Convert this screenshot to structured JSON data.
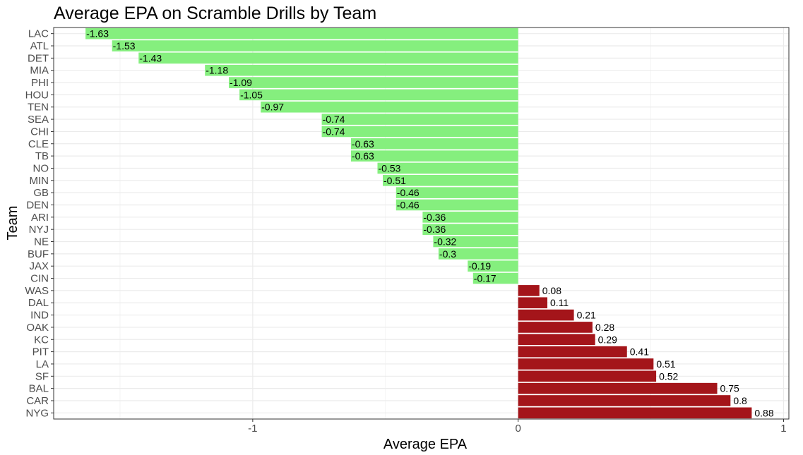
{
  "chart_data": {
    "type": "bar",
    "orientation": "horizontal",
    "title": "Average EPA on Scramble Drills by Team",
    "xlabel": "Average EPA",
    "ylabel": "Team",
    "xlim": [
      -1.75,
      1.02
    ],
    "xticks": [
      -1,
      0,
      1
    ],
    "xtick_labels": [
      "-1",
      "0",
      "1"
    ],
    "grid": true,
    "legend": "none",
    "colors": {
      "negative": "#85ef7e",
      "positive": "#a4151a"
    },
    "categories": [
      "LAC",
      "ATL",
      "DET",
      "MIA",
      "PHI",
      "HOU",
      "TEN",
      "SEA",
      "CHI",
      "CLE",
      "TB",
      "NO",
      "MIN",
      "GB",
      "DEN",
      "ARI",
      "NYJ",
      "NE",
      "BUF",
      "JAX",
      "CIN",
      "WAS",
      "DAL",
      "IND",
      "OAK",
      "KC",
      "PIT",
      "LA",
      "SF",
      "BAL",
      "CAR",
      "NYG"
    ],
    "values": [
      -1.63,
      -1.53,
      -1.43,
      -1.18,
      -1.09,
      -1.05,
      -0.97,
      -0.74,
      -0.74,
      -0.63,
      -0.63,
      -0.53,
      -0.51,
      -0.46,
      -0.46,
      -0.36,
      -0.36,
      -0.32,
      -0.3,
      -0.19,
      -0.17,
      0.08,
      0.11,
      0.21,
      0.28,
      0.29,
      0.41,
      0.51,
      0.52,
      0.75,
      0.8,
      0.88
    ],
    "data_labels": [
      "-1.63",
      "-1.53",
      "-1.43",
      "-1.18",
      "-1.09",
      "-1.05",
      "-0.97",
      "-0.74",
      "-0.74",
      "-0.63",
      "-0.63",
      "-0.53",
      "-0.51",
      "-0.46",
      "-0.46",
      "-0.36",
      "-0.36",
      "-0.32",
      "-0.3",
      "-0.19",
      "-0.17",
      "0.08",
      "0.11",
      "0.21",
      "0.28",
      "0.29",
      "0.41",
      "0.51",
      "0.52",
      "0.75",
      "0.8",
      "0.88"
    ]
  }
}
